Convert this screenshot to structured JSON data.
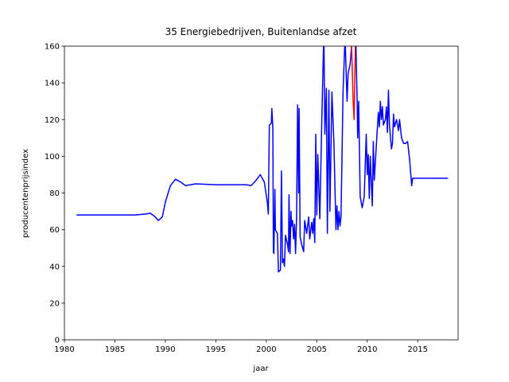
{
  "chart_data": {
    "type": "line",
    "title": "35 Energiebedrijven, Buitenlandse afzet",
    "x_label": "jaar",
    "y_label": "producentenprijsindex",
    "xlim": [
      1980,
      2019
    ],
    "ylim": [
      0,
      160
    ],
    "xticks": [
      1980,
      1985,
      1990,
      1995,
      2000,
      2005,
      2010,
      2015
    ],
    "yticks": [
      0,
      20,
      40,
      60,
      80,
      100,
      120,
      140,
      160
    ],
    "series": [
      {
        "color": "#0000ff",
        "x": [
          1981.2,
          1985,
          1987,
          1988,
          1988.5,
          1989,
          1989.3,
          1989.7,
          1990,
          1990.5,
          1991,
          1991.5,
          1992,
          1993,
          1995,
          1997,
          1998,
          1998.5,
          1999,
          1999.4,
          1999.8,
          2000.1,
          2000.2,
          2000.3,
          2000.5,
          2000.55,
          2000.65,
          2000.7,
          2000.75,
          2000.85,
          2000.9,
          2001.1,
          2001.2,
          2001.4,
          2001.5,
          2001.6,
          2001.7,
          2001.8,
          2001.9,
          2002.1,
          2002.2,
          2002.25,
          2002.35,
          2002.45,
          2002.5,
          2002.6,
          2002.7,
          2002.8,
          2002.9,
          2003,
          2003.1,
          2003.2,
          2003.25,
          2003.35,
          2003.5,
          2003.7,
          2003.8,
          2004,
          2004.2,
          2004.3,
          2004.5,
          2004.6,
          2004.7,
          2004.8,
          2004.9,
          2005,
          2005.1,
          2005.3,
          2005.5,
          2005.7,
          2005.8,
          2005.95,
          2006.05,
          2006.2,
          2006.3,
          2006.5,
          2006.7,
          2006.9,
          2007,
          2007.1,
          2007.2,
          2007.3,
          2007.4,
          2007.5,
          2007.6,
          2007.8,
          2008,
          2008.1,
          2008.3,
          2008.45
        ],
        "values": [
          68,
          68,
          68,
          68.5,
          69,
          67,
          65,
          67,
          75,
          84,
          87.5,
          86,
          84,
          85,
          84.5,
          84.5,
          84.5,
          84,
          87,
          90,
          86,
          75,
          68.5,
          117,
          118,
          126,
          115,
          48,
          47,
          82,
          60,
          58,
          37,
          38,
          92,
          42,
          44,
          40,
          57,
          52,
          48,
          79,
          47,
          70,
          62,
          65,
          55,
          63,
          47,
          67,
          128,
          80,
          126,
          56,
          52,
          48,
          65,
          58,
          67,
          55,
          64,
          58,
          66,
          53,
          112,
          68,
          101,
          66,
          120,
          168,
          112,
          137,
          58,
          136,
          70,
          135,
          107,
          60,
          73,
          60,
          70,
          62,
          67,
          100,
          135,
          165,
          130,
          145,
          150,
          160
        ]
      },
      {
        "color": "#ff0000",
        "x": [
          2008.45,
          2008.6,
          2008.7,
          2008.85
        ],
        "values": [
          160,
          130,
          120,
          170
        ]
      },
      {
        "color": "#0000ff",
        "x": [
          2008.85,
          2008.9,
          2009,
          2009.05,
          2009.15,
          2009.3,
          2009.5,
          2009.7,
          2009.9,
          2010,
          2010.1,
          2010.2,
          2010.3,
          2010.5,
          2010.6,
          2010.7,
          2010.9,
          2011,
          2011.1,
          2011.2,
          2011.3,
          2011.4,
          2011.5,
          2011.6,
          2011.8,
          2011.9,
          2012,
          2012.1,
          2012.2,
          2012.4,
          2012.5,
          2012.6,
          2012.7,
          2012.9,
          2013.1,
          2013.2,
          2013.4,
          2013.6,
          2013.8,
          2014,
          2014.2,
          2014.4,
          2014.5,
          2015,
          2018
        ],
        "values": [
          170,
          155,
          130,
          110,
          130,
          78,
          72,
          78,
          112,
          90,
          101,
          77,
          100,
          73,
          108,
          87,
          106,
          115,
          124,
          116,
          130,
          120,
          127,
          117,
          120,
          127,
          113,
          136,
          117,
          104,
          107,
          123,
          116,
          120,
          114,
          120,
          110,
          107,
          107,
          108,
          98,
          84,
          88,
          88,
          88
        ]
      }
    ]
  }
}
